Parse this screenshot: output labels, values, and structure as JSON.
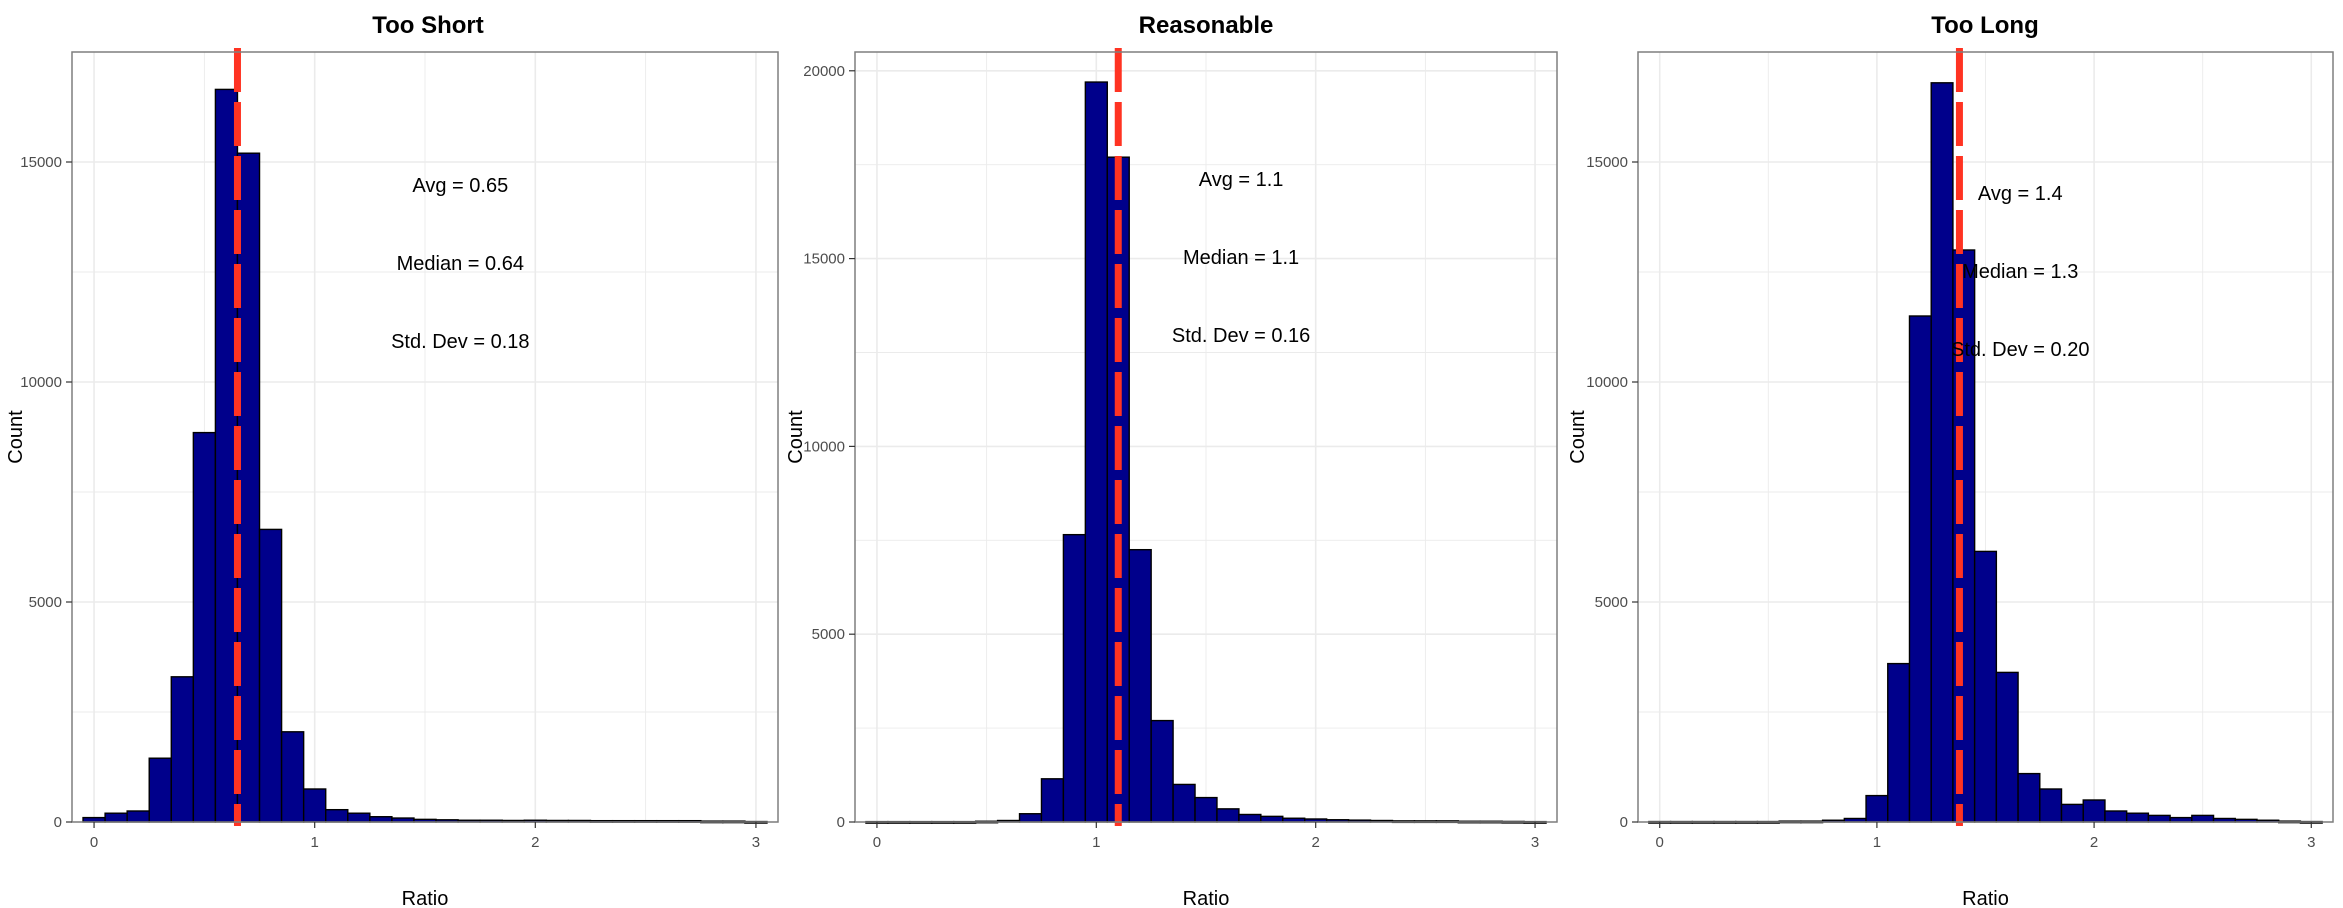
{
  "colors": {
    "bar_fill": "#00008B",
    "bar_stroke": "#000000",
    "vline": "#FF3322",
    "grid": "#EBEBEB",
    "panel_border": "#7F7F7F"
  },
  "chart_data": [
    {
      "type": "bar",
      "title": "Too Short",
      "xlabel": "Ratio",
      "ylabel": "Count",
      "xlim": [
        -0.1,
        3.1
      ],
      "ylim": [
        0,
        17500
      ],
      "xticks": [
        0,
        1,
        2,
        3
      ],
      "yticks": [
        0,
        5000,
        10000,
        15000
      ],
      "bin_width": 0.1,
      "x": [
        0.0,
        0.1,
        0.2,
        0.3,
        0.4,
        0.5,
        0.6,
        0.7,
        0.8,
        0.9,
        1.0,
        1.1,
        1.2,
        1.3,
        1.4,
        1.5,
        1.6,
        1.7,
        1.8,
        1.9,
        2.0,
        2.1,
        2.2,
        2.3,
        2.4,
        2.5,
        2.6,
        2.7,
        2.8,
        2.9,
        3.0
      ],
      "values": [
        100,
        200,
        250,
        1450,
        3300,
        8850,
        16650,
        15200,
        6650,
        2050,
        750,
        280,
        200,
        120,
        90,
        60,
        50,
        40,
        40,
        35,
        40,
        35,
        35,
        30,
        30,
        30,
        30,
        30,
        20,
        20,
        10
      ],
      "vline": 0.65,
      "annotations": [
        "Avg = 0.65",
        "Median = 0.64",
        "Std. Dev = 0.18"
      ]
    },
    {
      "type": "bar",
      "title": "Reasonable",
      "xlabel": "Ratio",
      "ylabel": "Count",
      "xlim": [
        -0.1,
        3.1
      ],
      "ylim": [
        0,
        20500
      ],
      "xticks": [
        0,
        1,
        2,
        3
      ],
      "yticks": [
        0,
        5000,
        10000,
        15000,
        20000
      ],
      "bin_width": 0.1,
      "x": [
        0.0,
        0.1,
        0.2,
        0.3,
        0.4,
        0.5,
        0.6,
        0.7,
        0.8,
        0.9,
        1.0,
        1.1,
        1.2,
        1.3,
        1.4,
        1.5,
        1.6,
        1.7,
        1.8,
        1.9,
        2.0,
        2.1,
        2.2,
        2.3,
        2.4,
        2.5,
        2.6,
        2.7,
        2.8,
        2.9,
        3.0
      ],
      "values": [
        10,
        10,
        10,
        10,
        10,
        20,
        40,
        220,
        1150,
        7650,
        19700,
        17700,
        7250,
        2700,
        1000,
        650,
        350,
        200,
        150,
        100,
        80,
        60,
        50,
        40,
        30,
        30,
        30,
        20,
        20,
        15,
        10
      ],
      "vline": 1.1,
      "annotations": [
        "Avg = 1.1",
        "Median = 1.1",
        "Std. Dev = 0.16"
      ]
    },
    {
      "type": "bar",
      "title": "Too Long",
      "xlabel": "Ratio",
      "ylabel": "Count",
      "xlim": [
        -0.1,
        3.1
      ],
      "ylim": [
        0,
        17500
      ],
      "xticks": [
        0,
        1,
        2,
        3
      ],
      "yticks": [
        0,
        5000,
        10000,
        15000
      ],
      "bin_width": 0.1,
      "x": [
        0.0,
        0.1,
        0.2,
        0.3,
        0.4,
        0.5,
        0.6,
        0.7,
        0.8,
        0.9,
        1.0,
        1.1,
        1.2,
        1.3,
        1.4,
        1.5,
        1.6,
        1.7,
        1.8,
        1.9,
        2.0,
        2.1,
        2.2,
        2.3,
        2.4,
        2.5,
        2.6,
        2.7,
        2.8,
        2.9,
        3.0
      ],
      "values": [
        10,
        10,
        10,
        10,
        10,
        10,
        20,
        20,
        40,
        80,
        600,
        3600,
        11500,
        16800,
        13000,
        6150,
        3400,
        1100,
        750,
        400,
        500,
        250,
        200,
        150,
        100,
        150,
        80,
        60,
        40,
        20,
        10
      ],
      "vline": 1.38,
      "annotations": [
        "Avg = 1.4",
        "Median = 1.3",
        "Std. Dev = 0.20"
      ]
    }
  ]
}
